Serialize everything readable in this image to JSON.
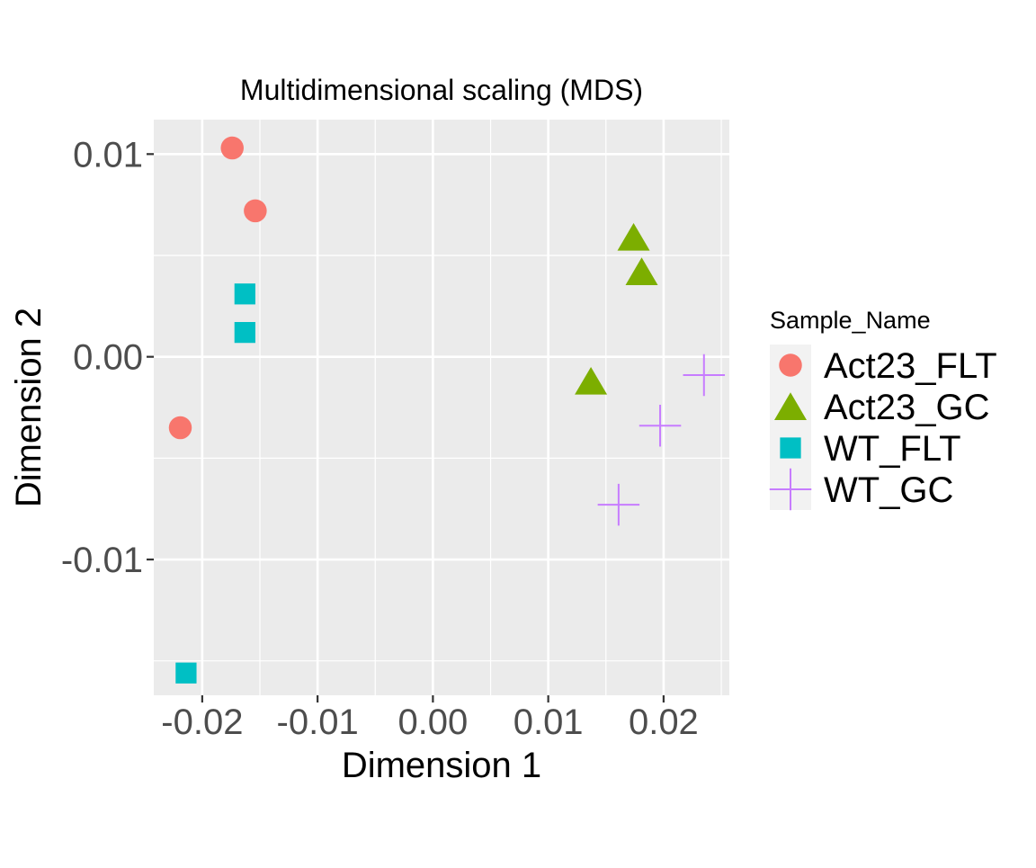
{
  "chart_data": {
    "type": "scatter",
    "title": "Multidimensional scaling (MDS)",
    "xlabel": "Dimension 1",
    "ylabel": "Dimension 2",
    "xlim": [
      -0.0242,
      0.0257
    ],
    "ylim": [
      -0.0167,
      0.0117
    ],
    "x_ticks": [
      -0.02,
      -0.01,
      0.0,
      0.01,
      0.02
    ],
    "x_tick_labels": [
      "-0.02",
      "-0.01",
      "0.00",
      "0.01",
      "0.02"
    ],
    "y_ticks": [
      -0.01,
      0.0,
      0.01
    ],
    "y_tick_labels": [
      "-0.01",
      "0.00",
      "0.01"
    ],
    "grid": true,
    "legend": {
      "title": "Sample_Name",
      "placement": "right"
    },
    "series": [
      {
        "name": "Act23_FLT",
        "color": "#F8766D",
        "shape": "circle",
        "points": [
          {
            "x": -0.0174,
            "y": 0.0103
          },
          {
            "x": -0.0154,
            "y": 0.0072
          },
          {
            "x": -0.0219,
            "y": -0.0035
          }
        ]
      },
      {
        "name": "Act23_GC",
        "color": "#7CAE00",
        "shape": "triangle",
        "points": [
          {
            "x": 0.0174,
            "y": 0.0059
          },
          {
            "x": 0.0181,
            "y": 0.0042
          },
          {
            "x": 0.0137,
            "y": -0.0012
          }
        ]
      },
      {
        "name": "WT_FLT",
        "color": "#00BFC4",
        "shape": "square",
        "points": [
          {
            "x": -0.0163,
            "y": 0.0031
          },
          {
            "x": -0.0163,
            "y": 0.0012
          },
          {
            "x": -0.0214,
            "y": -0.0156
          }
        ]
      },
      {
        "name": "WT_GC",
        "color": "#C77CFF",
        "shape": "plus",
        "points": [
          {
            "x": 0.0235,
            "y": -0.0009
          },
          {
            "x": 0.0197,
            "y": -0.0034
          },
          {
            "x": 0.0161,
            "y": -0.0073
          }
        ]
      }
    ]
  }
}
